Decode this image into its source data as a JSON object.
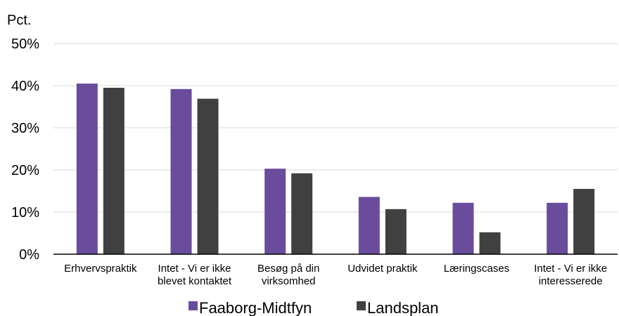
{
  "chart_data": {
    "type": "bar",
    "unit_label": "Pct.",
    "categories": [
      [
        "Erhvervspraktik"
      ],
      [
        "Intet - Vi er ikke",
        "blevet kontaktet"
      ],
      [
        "Besøg på din",
        "virksomhed"
      ],
      [
        "Udvidet praktik"
      ],
      [
        "Læringscases"
      ],
      [
        "Intet - Vi er ikke",
        "interesserede"
      ]
    ],
    "series": [
      {
        "name": "Faaborg-Midtfyn",
        "color": "#6a4c9c",
        "values": [
          40.5,
          39.2,
          20.3,
          13.6,
          12.2,
          12.2
        ]
      },
      {
        "name": "Landsplan",
        "color": "#404040",
        "values": [
          39.5,
          36.9,
          19.2,
          10.7,
          5.2,
          15.5
        ]
      }
    ],
    "ylim": [
      0,
      50
    ],
    "yticks": [
      0,
      10,
      20,
      30,
      40,
      50
    ],
    "ytick_format": "percent",
    "grid": true,
    "legend_position": "bottom"
  }
}
